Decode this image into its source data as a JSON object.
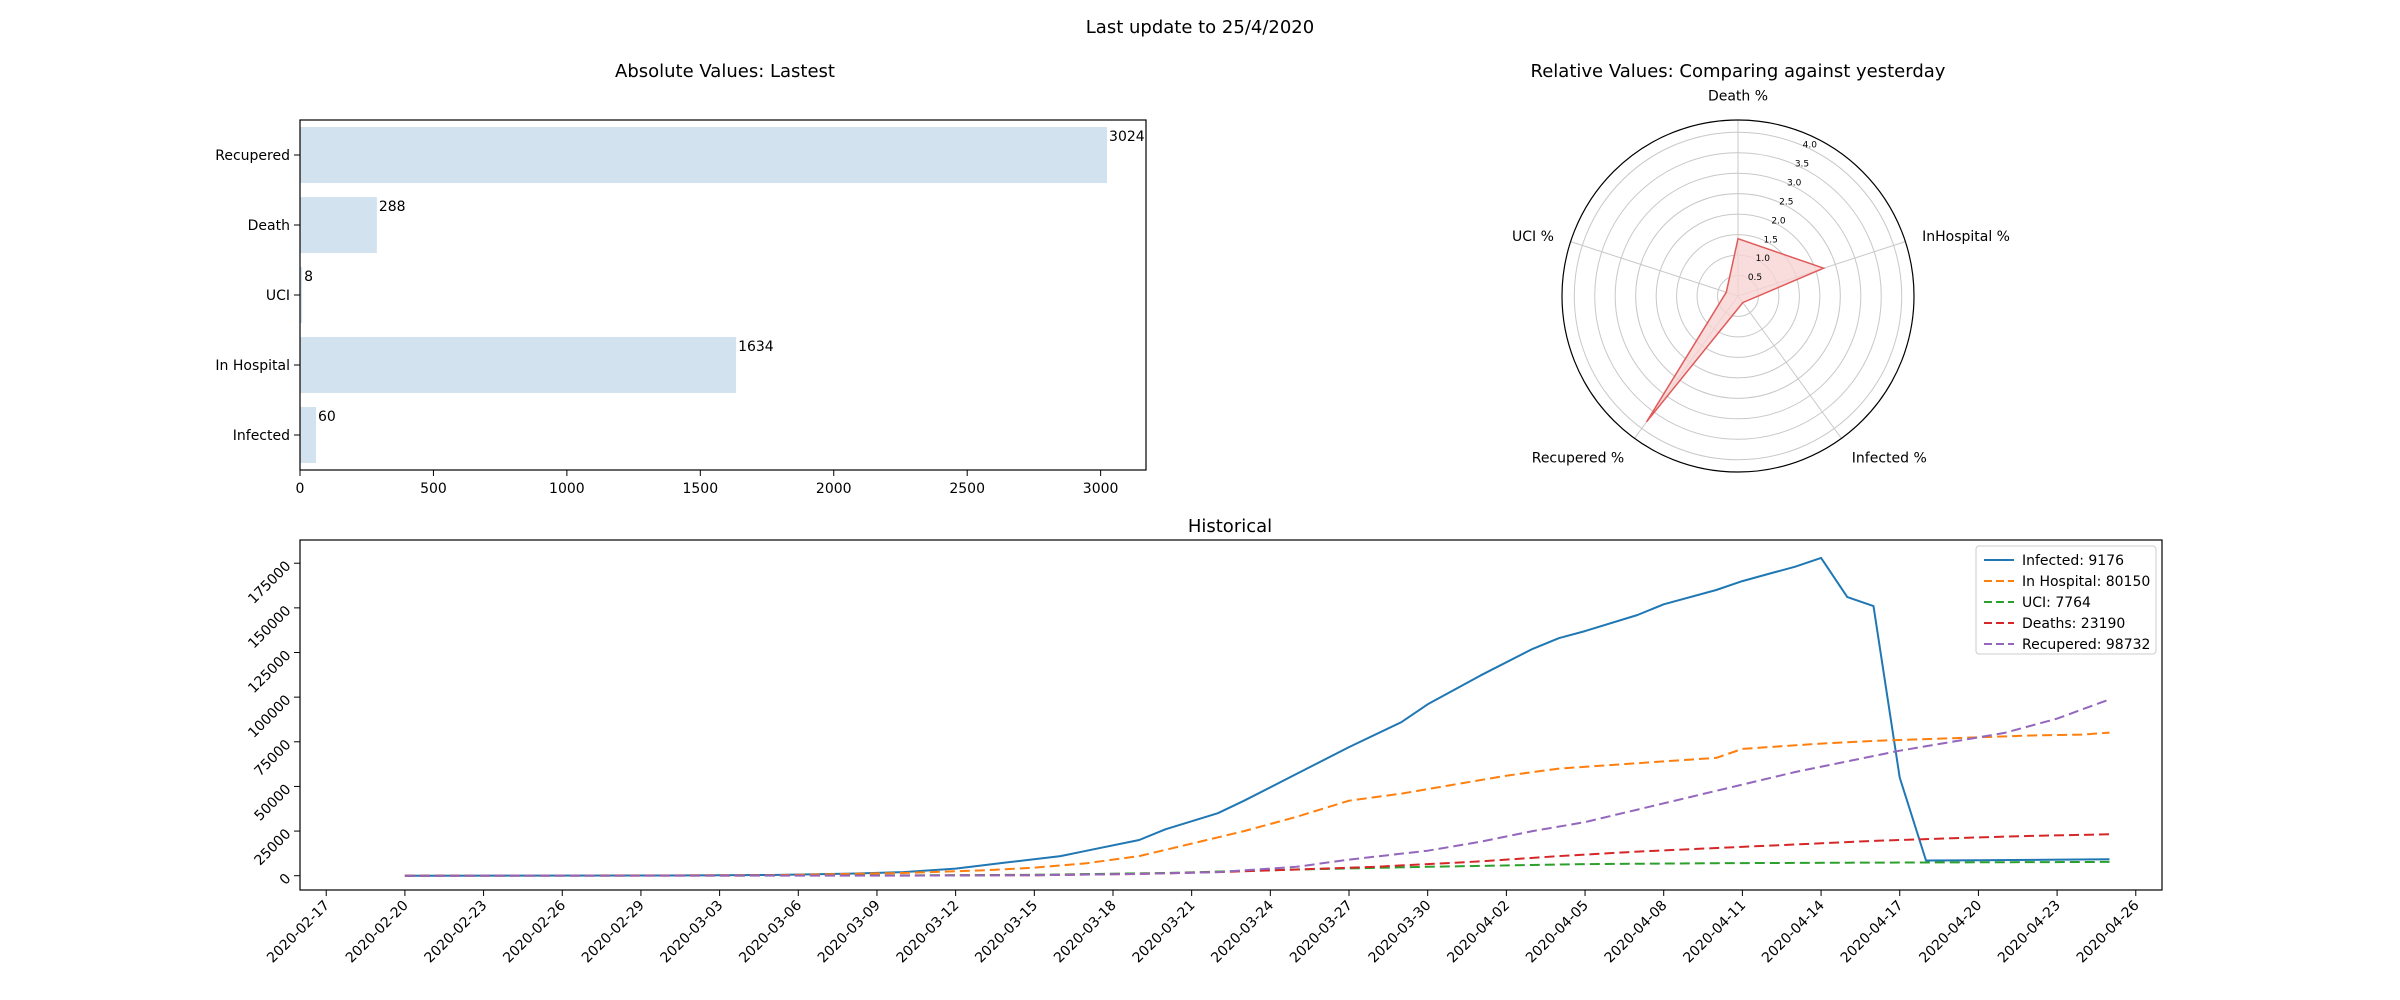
{
  "suptitle": "Last update to 25/4/2020",
  "colors": {
    "bar_fill": "#d2e3ef",
    "radar_line": "#e05a5a",
    "radar_fill": "#f7d3d3",
    "infected": "#1f77b4",
    "hospital": "#ff7f0e",
    "uci": "#2ca02c",
    "deaths": "#d62728",
    "recupered": "#9467bd"
  },
  "chart_data": [
    {
      "type": "bar",
      "orientation": "horizontal",
      "title": "Absolute Values: Lastest",
      "categories": [
        "Infected",
        "In Hospital",
        "UCI",
        "Death",
        "Recupered"
      ],
      "values": [
        60,
        1634,
        8,
        288,
        3024
      ],
      "xlim": [
        0,
        3170
      ],
      "xticks": [
        0,
        500,
        1000,
        1500,
        2000,
        2500,
        3000
      ],
      "grid": false
    },
    {
      "type": "radar",
      "title": "Relative Values: Comparing against yesterday",
      "axes": [
        "Death %",
        "InHospital %",
        "Infected %",
        "Recupered %",
        "UCI %"
      ],
      "values": [
        1.4,
        2.2,
        0.2,
        3.8,
        0.3
      ],
      "rmax": 4.3,
      "rticks": [
        "0.5",
        "1.0",
        "1.5",
        "2.0",
        "2.5",
        "3.0",
        "3.5",
        "4.0"
      ],
      "grid": true
    },
    {
      "type": "line",
      "title": "Historical",
      "xlabel": "",
      "ylabel": "",
      "xlim": [
        "2020-02-16",
        "2020-04-27"
      ],
      "ylim": [
        -8000,
        188000
      ],
      "xticks": [
        "2020-02-17",
        "2020-02-20",
        "2020-02-23",
        "2020-02-26",
        "2020-02-29",
        "2020-03-03",
        "2020-03-06",
        "2020-03-09",
        "2020-03-12",
        "2020-03-15",
        "2020-03-18",
        "2020-03-21",
        "2020-03-24",
        "2020-03-27",
        "2020-03-30",
        "2020-04-02",
        "2020-04-05",
        "2020-04-08",
        "2020-04-11",
        "2020-04-14",
        "2020-04-17",
        "2020-04-20",
        "2020-04-23",
        "2020-04-26"
      ],
      "yticks": [
        0,
        25000,
        50000,
        75000,
        100000,
        125000,
        150000,
        175000
      ],
      "legend_position": "top-right",
      "series": [
        {
          "name": "Infected: 9176",
          "key": "infected",
          "style": "solid",
          "points": [
            [
              "2020-02-20",
              0
            ],
            [
              "2020-03-01",
              100
            ],
            [
              "2020-03-05",
              400
            ],
            [
              "2020-03-08",
              1200
            ],
            [
              "2020-03-10",
              2000
            ],
            [
              "2020-03-12",
              4000
            ],
            [
              "2020-03-14",
              7500
            ],
            [
              "2020-03-16",
              11000
            ],
            [
              "2020-03-17",
              14000
            ],
            [
              "2020-03-19",
              20000
            ],
            [
              "2020-03-20",
              26000
            ],
            [
              "2020-03-22",
              35000
            ],
            [
              "2020-03-23",
              42000
            ],
            [
              "2020-03-25",
              57000
            ],
            [
              "2020-03-27",
              72000
            ],
            [
              "2020-03-29",
              86000
            ],
            [
              "2020-03-30",
              96000
            ],
            [
              "2020-04-01",
              112000
            ],
            [
              "2020-04-03",
              127000
            ],
            [
              "2020-04-04",
              133000
            ],
            [
              "2020-04-05",
              137000
            ],
            [
              "2020-04-07",
              146000
            ],
            [
              "2020-04-08",
              152000
            ],
            [
              "2020-04-10",
              160000
            ],
            [
              "2020-04-11",
              165000
            ],
            [
              "2020-04-12",
              169000
            ],
            [
              "2020-04-13",
              173000
            ],
            [
              "2020-04-14",
              178000
            ],
            [
              "2020-04-15",
              156000
            ],
            [
              "2020-04-16",
              151000
            ],
            [
              "2020-04-17",
              55000
            ],
            [
              "2020-04-18",
              8500
            ],
            [
              "2020-04-20",
              8700
            ],
            [
              "2020-04-25",
              9176
            ]
          ]
        },
        {
          "name": "In Hospital: 80150",
          "key": "hospital",
          "style": "dashed",
          "points": [
            [
              "2020-02-20",
              0
            ],
            [
              "2020-03-05",
              300
            ],
            [
              "2020-03-10",
              1500
            ],
            [
              "2020-03-13",
              3000
            ],
            [
              "2020-03-15",
              4500
            ],
            [
              "2020-03-17",
              7000
            ],
            [
              "2020-03-19",
              11000
            ],
            [
              "2020-03-21",
              18000
            ],
            [
              "2020-03-23",
              25000
            ],
            [
              "2020-03-25",
              33000
            ],
            [
              "2020-03-27",
              42000
            ],
            [
              "2020-03-29",
              46000
            ],
            [
              "2020-03-31",
              51000
            ],
            [
              "2020-04-02",
              56000
            ],
            [
              "2020-04-04",
              60000
            ],
            [
              "2020-04-06",
              62000
            ],
            [
              "2020-04-08",
              64000
            ],
            [
              "2020-04-10",
              66000
            ],
            [
              "2020-04-11",
              71000
            ],
            [
              "2020-04-12",
              72000
            ],
            [
              "2020-04-14",
              74000
            ],
            [
              "2020-04-16",
              75500
            ],
            [
              "2020-04-18",
              76500
            ],
            [
              "2020-04-20",
              77500
            ],
            [
              "2020-04-22",
              78500
            ],
            [
              "2020-04-24",
              79000
            ],
            [
              "2020-04-25",
              80150
            ]
          ]
        },
        {
          "name": "UCI: 7764",
          "key": "uci",
          "style": "dashed",
          "points": [
            [
              "2020-02-20",
              0
            ],
            [
              "2020-03-10",
              200
            ],
            [
              "2020-03-15",
              500
            ],
            [
              "2020-03-20",
              1500
            ],
            [
              "2020-03-25",
              3500
            ],
            [
              "2020-03-30",
              5000
            ],
            [
              "2020-04-05",
              6500
            ],
            [
              "2020-04-10",
              7000
            ],
            [
              "2020-04-15",
              7300
            ],
            [
              "2020-04-20",
              7500
            ],
            [
              "2020-04-25",
              7764
            ]
          ]
        },
        {
          "name": "Deaths: 23190",
          "key": "deaths",
          "style": "dashed",
          "points": [
            [
              "2020-02-20",
              0
            ],
            [
              "2020-03-10",
              100
            ],
            [
              "2020-03-15",
              300
            ],
            [
              "2020-03-19",
              1000
            ],
            [
              "2020-03-22",
              2000
            ],
            [
              "2020-03-25",
              3500
            ],
            [
              "2020-03-28",
              5000
            ],
            [
              "2020-04-01",
              8000
            ],
            [
              "2020-04-04",
              11000
            ],
            [
              "2020-04-07",
              13500
            ],
            [
              "2020-04-10",
              15500
            ],
            [
              "2020-04-13",
              17500
            ],
            [
              "2020-04-16",
              19500
            ],
            [
              "2020-04-19",
              21000
            ],
            [
              "2020-04-22",
              22300
            ],
            [
              "2020-04-25",
              23190
            ]
          ]
        },
        {
          "name": "Recupered: 98732",
          "key": "recupered",
          "style": "dashed",
          "points": [
            [
              "2020-02-20",
              0
            ],
            [
              "2020-03-10",
              50
            ],
            [
              "2020-03-15",
              300
            ],
            [
              "2020-03-19",
              1000
            ],
            [
              "2020-03-22",
              2000
            ],
            [
              "2020-03-25",
              5000
            ],
            [
              "2020-03-27",
              9000
            ],
            [
              "2020-03-30",
              14000
            ],
            [
              "2020-04-01",
              19000
            ],
            [
              "2020-04-03",
              25000
            ],
            [
              "2020-04-05",
              30000
            ],
            [
              "2020-04-07",
              37000
            ],
            [
              "2020-04-09",
              44000
            ],
            [
              "2020-04-11",
              51000
            ],
            [
              "2020-04-13",
              58000
            ],
            [
              "2020-04-15",
              64000
            ],
            [
              "2020-04-17",
              70000
            ],
            [
              "2020-04-19",
              75000
            ],
            [
              "2020-04-21",
              80000
            ],
            [
              "2020-04-23",
              88000
            ],
            [
              "2020-04-25",
              98732
            ]
          ]
        }
      ]
    }
  ]
}
